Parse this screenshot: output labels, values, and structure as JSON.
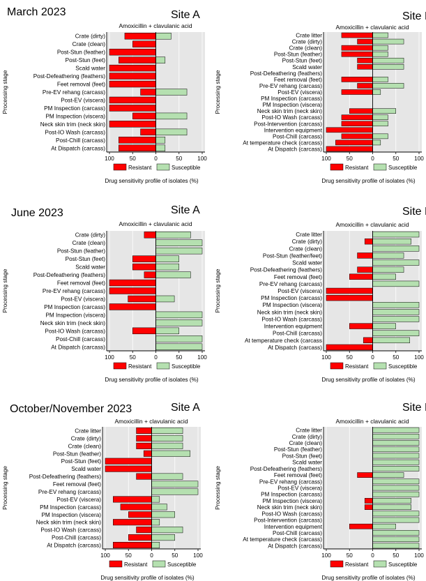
{
  "sections": [
    {
      "label": "March 2023"
    },
    {
      "label": "June 2023"
    },
    {
      "label": "October/November 2023"
    }
  ],
  "colors": {
    "resistant": "#ff0000",
    "susceptible": "#b5e0b0",
    "plot_bg": "#e6e6e6",
    "axis": "#000000"
  },
  "chart_data": [
    {
      "type": "bar",
      "site": "Site A",
      "drug": "Amoxicillin + clavulanic acid",
      "ylabel": "Processing stage",
      "xlabel": "Drug sensitivity profile of isolates (%)",
      "xticks": [
        "100",
        "50",
        "0",
        "50",
        "100"
      ],
      "legend": [
        "Resistant",
        "Susceptible"
      ],
      "categories": [
        "Crate (dirty)",
        "Crate (clean)",
        "Post-Stun (feather)",
        "Post-Stun (feet)",
        "Scald water",
        "Post-Defeathering (feathers)",
        "Feet removal (feet)",
        "Pre-EV rehang (carcass)",
        "Post-EV (viscera)",
        "PM Inspection (carcass)",
        "PM Inspection (viscera)",
        "Neck skin trim (neck skin)",
        "Post-IO Wash (carcass)",
        "Post-Chill (carcass)",
        "At Dispatch (carcass)"
      ],
      "series": [
        {
          "name": "Resistant",
          "values": [
            67,
            50,
            100,
            80,
            100,
            100,
            100,
            33,
            100,
            100,
            50,
            100,
            33,
            80,
            80
          ]
        },
        {
          "name": "Susceptible",
          "values": [
            33,
            0,
            0,
            20,
            0,
            0,
            0,
            67,
            0,
            0,
            67,
            0,
            67,
            20,
            20
          ]
        }
      ]
    },
    {
      "type": "bar",
      "site": "Site B",
      "drug": "Amoxicillin + clavulanic acid",
      "ylabel": "Processing stage",
      "xlabel": "Drug sensitivity profile of isolates (%)",
      "xticks": [
        "100",
        "50",
        "0",
        "50",
        "100"
      ],
      "legend": [
        "Resistant",
        "Susceptible"
      ],
      "categories": [
        "Crate litter",
        "Crate (dirty)",
        "Crate (clean)",
        "Post-Stun (feather)",
        "Post-Stun (feet)",
        "Scald water",
        "Post-Defeathering (feathers)",
        "Feet removal (feet)",
        "Pre-EV rehang (carcass)",
        "Post-EV (viscera)",
        "PM Inspection (carcass)",
        "PM Inspection (viscera)",
        "Neck skin trim (neck skin)",
        "Post-IO Wash (carcass)",
        "Post-Intervention (carcass)",
        "Intervention equipment",
        "Post-Chill (carcass)",
        "At temperature check (carcass)",
        "At Dispatch (carcass)"
      ],
      "series": [
        {
          "name": "Resistant",
          "values": [
            67,
            33,
            67,
            67,
            33,
            33,
            0,
            67,
            33,
            67,
            0,
            0,
            50,
            67,
            67,
            100,
            67,
            80,
            100
          ]
        },
        {
          "name": "Susceptible",
          "values": [
            33,
            67,
            33,
            33,
            67,
            67,
            0,
            33,
            67,
            17,
            0,
            0,
            50,
            33,
            33,
            0,
            33,
            17,
            0
          ]
        }
      ]
    },
    {
      "type": "bar",
      "site": "Site A",
      "drug": "Amoxicillin + clavulanic acid",
      "ylabel": "Processing stage",
      "xlabel": "Drug sensitivity profile of isolates (%)",
      "xticks": [
        "100",
        "50",
        "0",
        "50",
        "100"
      ],
      "legend": [
        "Resistant",
        "Susceptible"
      ],
      "categories": [
        "Crate (dirty)",
        "Crate (clean)",
        "Post-Stun (feather)",
        "Post-Stun (feet)",
        "Scald water",
        "Post-Defeathering (feathers)",
        "Feet removal (feet)",
        "Pre-EV rehang (carcass)",
        "Post-EV (viscera)",
        "PM Inspection (carcass)",
        "PM Inspection (viscera)",
        "Neck skin trim (neck skin)",
        "Post-IO Wash (carcass)",
        "Post-Chill (carcass)",
        "At Dispatch (carcass)"
      ],
      "series": [
        {
          "name": "Resistant",
          "values": [
            25,
            0,
            0,
            50,
            50,
            25,
            100,
            100,
            60,
            100,
            0,
            0,
            50,
            0,
            0
          ]
        },
        {
          "name": "Susceptible",
          "values": [
            75,
            100,
            100,
            50,
            50,
            75,
            0,
            0,
            40,
            0,
            100,
            100,
            50,
            100,
            100
          ]
        }
      ]
    },
    {
      "type": "bar",
      "site": "Site B",
      "drug": "Amoxicillin + clavulanic acid",
      "ylabel": "Processing stage",
      "xlabel": "Drug sensitivity profile of isolates (%)",
      "xticks": [
        "100",
        "50",
        "0",
        "50",
        "100"
      ],
      "legend": [
        "Resistant",
        "Susceptible"
      ],
      "categories": [
        "Crate litter",
        "Crate (dirty)",
        "Crate (clean)",
        "Post-Stun (feather/feet)",
        "Scald water",
        "Post-Defeathering (feathers)",
        "Feet removal (feet)",
        "Pre-EV rehang (carcass)",
        "Post-EV (viscera)",
        "PM Inspection (carcass)",
        "PM Inspection (viscera)",
        "Neck skin trim (neck skin)",
        "Post-IO Wash (carcass)",
        "Intervention equipment",
        "Post-Chill (carcass)",
        "At temperature check (carcass",
        "At Dispatch (carcass)"
      ],
      "series": [
        {
          "name": "Resistant",
          "values": [
            0,
            17,
            0,
            33,
            0,
            33,
            50,
            0,
            100,
            100,
            0,
            0,
            0,
            50,
            0,
            20,
            100
          ]
        },
        {
          "name": "Susceptible",
          "values": [
            100,
            83,
            100,
            67,
            100,
            67,
            50,
            100,
            0,
            0,
            100,
            100,
            100,
            50,
            100,
            80,
            0
          ]
        }
      ]
    },
    {
      "type": "bar",
      "site": "Site A",
      "drug": "Amoxicillin + clavulanic acid",
      "ylabel": "Processing stage",
      "xlabel": "Drug sensitivity profile of isolates (%)",
      "xticks": [
        "100",
        "50",
        "0",
        "50",
        "100"
      ],
      "legend": [
        "Resistant",
        "Susceptible"
      ],
      "categories": [
        "Crate litter",
        "Crate (dirty)",
        "Crate (clean)",
        "Post-Stun (feather)",
        "Post-Stun (feet)",
        "Scald water",
        "Post-Defeathering (feathers)",
        "Feet removal (feet)",
        "Pre-EV rehang (carcass)",
        "Post-EV (viscera)",
        "PM Inspection (carcass)",
        "PM Inspection (viscera)",
        "Neck skin trim (neck skin)",
        "Post-IO Wash (carcass)",
        "Post-Chill (carcass)",
        "At Dispatch (carcass)"
      ],
      "series": [
        {
          "name": "Resistant",
          "values": [
            33,
            33,
            33,
            17,
            100,
            100,
            33,
            0,
            0,
            83,
            67,
            50,
            83,
            33,
            50,
            83
          ]
        },
        {
          "name": "Susceptible",
          "values": [
            67,
            67,
            67,
            83,
            0,
            0,
            67,
            100,
            100,
            17,
            33,
            50,
            17,
            67,
            50,
            17
          ]
        }
      ]
    },
    {
      "type": "bar",
      "site": "Site B",
      "drug": "Amoxicillin + clavulanic acid",
      "ylabel": "Processing stage",
      "xlabel": "Drug sensitivity profile of isolates (%)",
      "xticks": [
        "100",
        "50",
        "0",
        "50",
        "100"
      ],
      "legend": [
        "Resistant",
        "Susceptible"
      ],
      "categories": [
        "Crate litter",
        "Crate (dirty)",
        "Crate (clean)",
        "Post-Stun (feather)",
        "Post-Stun (feet)",
        "Scald water",
        "Post-Defeathering (feathers)",
        "Feet removal (feet)",
        "Pre-EV rehang (carcass)",
        "Post-EV (viscera)",
        "PM Inspection (carcass)",
        "PM Inspection (viscera)",
        "Neck skin trim (neck skin)",
        "Post-IO Wash (carcass)",
        "Post-Intervention (carcass)",
        "Intervention equipment",
        "Post-Chill (carcass)",
        "At temperature check (carcass)",
        "At Dispatch (carcass)"
      ],
      "series": [
        {
          "name": "Resistant",
          "values": [
            0,
            0,
            0,
            0,
            0,
            0,
            0,
            33,
            0,
            0,
            0,
            17,
            17,
            0,
            0,
            50,
            0,
            0,
            0
          ]
        },
        {
          "name": "Susceptible",
          "values": [
            100,
            100,
            100,
            100,
            100,
            100,
            100,
            67,
            100,
            100,
            100,
            83,
            83,
            100,
            100,
            50,
            100,
            100,
            100
          ]
        }
      ]
    }
  ]
}
